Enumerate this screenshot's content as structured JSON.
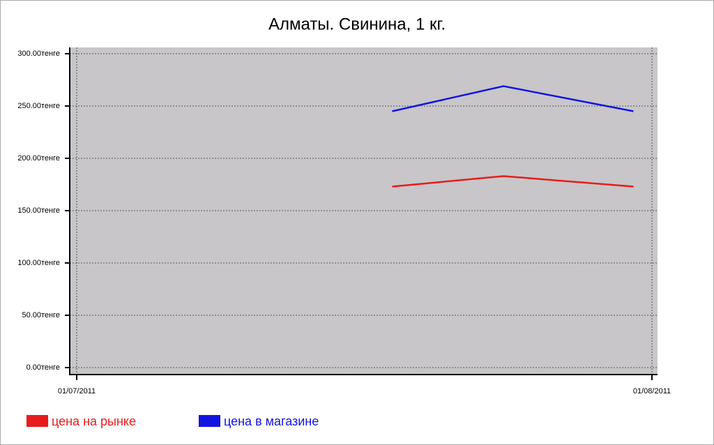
{
  "chart_data": {
    "type": "line",
    "title": "Алматы. Свинина, 1 кг.",
    "x": [
      "2011-07-18",
      "2011-07-24",
      "2011-07-31"
    ],
    "series": [
      {
        "name": "цена на рынке",
        "color": "#e81c1c",
        "values": [
          173,
          183,
          173
        ]
      },
      {
        "name": "цена в магазине",
        "color": "#1414e0",
        "values": [
          245,
          269,
          245
        ]
      }
    ],
    "xlim": [
      "2011-07-01",
      "2011-08-01"
    ],
    "xticks": [
      {
        "value": "2011-07-01",
        "label": "01/07/2011"
      },
      {
        "value": "2011-08-01",
        "label": "01/08/2011"
      }
    ],
    "ylim": [
      0,
      300
    ],
    "yticks": [
      {
        "value": 0,
        "label": "0.00тенге"
      },
      {
        "value": 50,
        "label": "50.00тенге"
      },
      {
        "value": 100,
        "label": "100.00тенге"
      },
      {
        "value": 150,
        "label": "150.00тенге"
      },
      {
        "value": 200,
        "label": "200.00тенге"
      },
      {
        "value": 250,
        "label": "250.00тенге"
      },
      {
        "value": 300,
        "label": "300.00тенге"
      }
    ],
    "grid": true,
    "background": "#c8c6c9",
    "legend": "bottom-left"
  }
}
